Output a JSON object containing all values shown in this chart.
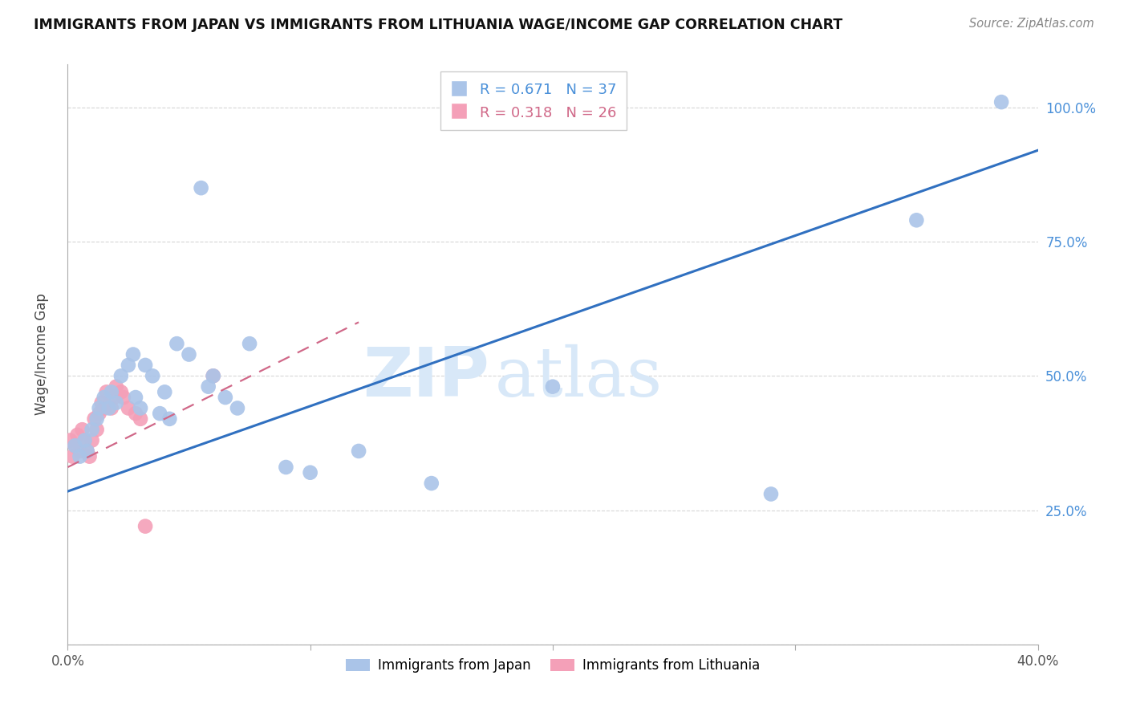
{
  "title": "IMMIGRANTS FROM JAPAN VS IMMIGRANTS FROM LITHUANIA WAGE/INCOME GAP CORRELATION CHART",
  "source": "Source: ZipAtlas.com",
  "ylabel_label": "Wage/Income Gap",
  "xlim": [
    0.0,
    0.4
  ],
  "ylim": [
    0.0,
    1.08
  ],
  "japan_R": 0.671,
  "japan_N": 37,
  "lithuania_R": 0.318,
  "lithuania_N": 26,
  "japan_color": "#aac4e8",
  "japan_line_color": "#3070c0",
  "lithuania_color": "#f4a0b8",
  "lithuania_line_color": "#d06888",
  "watermark_zip": "ZIP",
  "watermark_atlas": "atlas",
  "watermark_color": "#d8e8f8",
  "japan_scatter_x": [
    0.003,
    0.005,
    0.007,
    0.008,
    0.01,
    0.012,
    0.013,
    0.015,
    0.017,
    0.018,
    0.02,
    0.022,
    0.025,
    0.027,
    0.028,
    0.03,
    0.032,
    0.035,
    0.038,
    0.04,
    0.042,
    0.045,
    0.05,
    0.055,
    0.058,
    0.06,
    0.065,
    0.07,
    0.075,
    0.09,
    0.1,
    0.12,
    0.15,
    0.2,
    0.29,
    0.35,
    0.385
  ],
  "japan_scatter_y": [
    0.37,
    0.35,
    0.38,
    0.36,
    0.4,
    0.42,
    0.44,
    0.46,
    0.44,
    0.47,
    0.45,
    0.5,
    0.52,
    0.54,
    0.46,
    0.44,
    0.52,
    0.5,
    0.43,
    0.47,
    0.42,
    0.56,
    0.54,
    0.85,
    0.48,
    0.5,
    0.46,
    0.44,
    0.56,
    0.33,
    0.32,
    0.36,
    0.3,
    0.48,
    0.28,
    0.79,
    1.01
  ],
  "lithuania_scatter_x": [
    0.001,
    0.002,
    0.003,
    0.004,
    0.005,
    0.006,
    0.007,
    0.008,
    0.009,
    0.01,
    0.011,
    0.012,
    0.013,
    0.014,
    0.015,
    0.016,
    0.018,
    0.019,
    0.02,
    0.022,
    0.023,
    0.025,
    0.028,
    0.03,
    0.032,
    0.06
  ],
  "lithuania_scatter_y": [
    0.38,
    0.35,
    0.37,
    0.39,
    0.36,
    0.4,
    0.38,
    0.36,
    0.35,
    0.38,
    0.42,
    0.4,
    0.43,
    0.45,
    0.44,
    0.47,
    0.44,
    0.46,
    0.48,
    0.47,
    0.46,
    0.44,
    0.43,
    0.42,
    0.22,
    0.5
  ],
  "japan_line_x": [
    0.0,
    0.4
  ],
  "japan_line_y": [
    0.285,
    0.92
  ],
  "lithuania_line_x": [
    0.0,
    0.12
  ],
  "lithuania_line_y": [
    0.33,
    0.6
  ]
}
